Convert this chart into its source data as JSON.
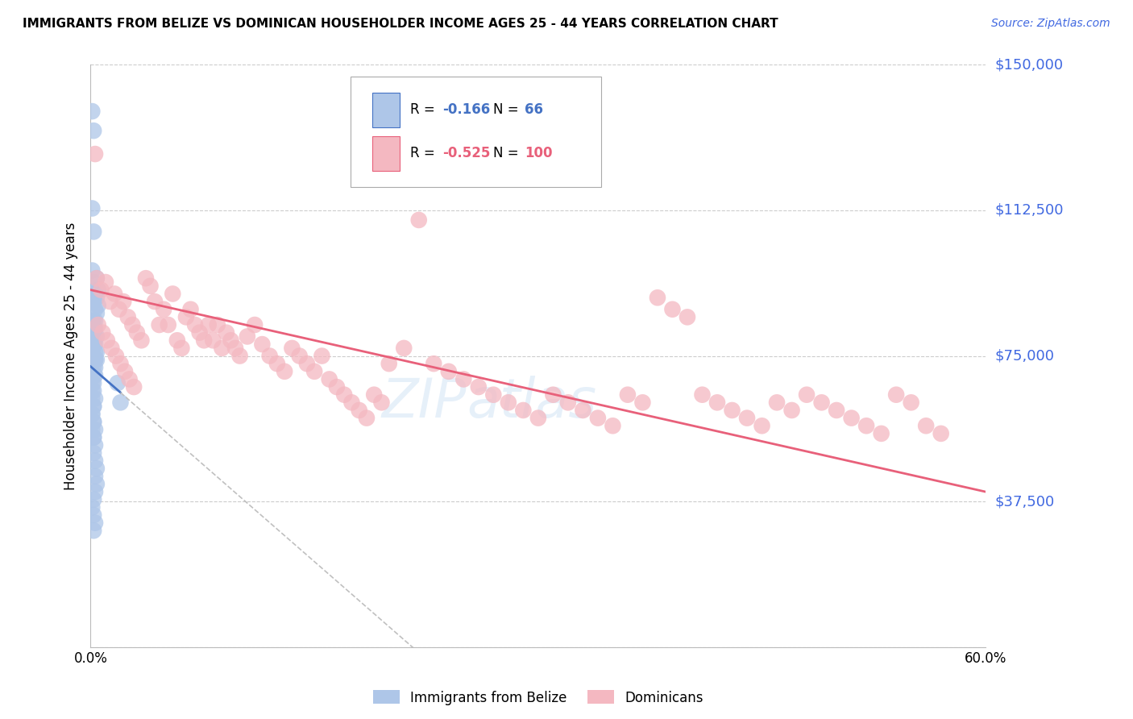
{
  "title": "IMMIGRANTS FROM BELIZE VS DOMINICAN HOUSEHOLDER INCOME AGES 25 - 44 YEARS CORRELATION CHART",
  "source": "Source: ZipAtlas.com",
  "ylabel": "Householder Income Ages 25 - 44 years",
  "x_min": 0.0,
  "x_max": 0.6,
  "y_min": 0,
  "y_max": 150000,
  "yticks": [
    0,
    37500,
    75000,
    112500,
    150000
  ],
  "ytick_labels": [
    "",
    "$37,500",
    "$75,000",
    "$112,500",
    "$150,000"
  ],
  "xtick_positions": [
    0.0,
    0.1,
    0.2,
    0.3,
    0.4,
    0.5,
    0.6
  ],
  "xtick_labels": [
    "0.0%",
    "",
    "",
    "",
    "",
    "",
    "60.0%"
  ],
  "grid_color": "#cccccc",
  "background_color": "#ffffff",
  "belize_color": "#aec6e8",
  "dominican_color": "#f4b8c1",
  "belize_line_color": "#4472c4",
  "dominican_line_color": "#e8607a",
  "dashed_line_color": "#c0c0c0",
  "legend_belize_label": "Immigrants from Belize",
  "legend_dominican_label": "Dominicans",
  "r_belize": -0.166,
  "n_belize": 66,
  "r_dominican": -0.525,
  "n_dominican": 100,
  "watermark_zip": "ZIP",
  "watermark_atlas": "atlas",
  "right_label_color": "#4169E1",
  "belize_points_x": [
    0.001,
    0.002,
    0.001,
    0.002,
    0.001,
    0.002,
    0.003,
    0.002,
    0.003,
    0.002,
    0.003,
    0.004,
    0.003,
    0.004,
    0.003,
    0.004,
    0.005,
    0.004,
    0.005,
    0.004,
    0.001,
    0.002,
    0.001,
    0.002,
    0.001,
    0.003,
    0.002,
    0.003,
    0.002,
    0.001,
    0.001,
    0.002,
    0.001,
    0.002,
    0.001,
    0.002,
    0.003,
    0.002,
    0.003,
    0.002,
    0.003,
    0.004,
    0.003,
    0.002,
    0.001,
    0.002,
    0.003,
    0.002,
    0.001,
    0.002,
    0.003,
    0.002,
    0.003,
    0.002,
    0.003,
    0.004,
    0.003,
    0.004,
    0.003,
    0.002,
    0.001,
    0.002,
    0.003,
    0.002,
    0.018,
    0.02
  ],
  "belize_points_y": [
    138000,
    133000,
    113000,
    107000,
    97000,
    94000,
    91000,
    89000,
    87000,
    84000,
    82000,
    80000,
    78000,
    76000,
    74000,
    95000,
    92000,
    90000,
    88000,
    86000,
    84000,
    82000,
    80000,
    78000,
    76000,
    74000,
    72000,
    70000,
    68000,
    66000,
    64000,
    62000,
    60000,
    58000,
    56000,
    54000,
    84000,
    82000,
    80000,
    78000,
    76000,
    74000,
    72000,
    70000,
    68000,
    66000,
    64000,
    62000,
    60000,
    58000,
    56000,
    54000,
    52000,
    50000,
    48000,
    46000,
    44000,
    42000,
    40000,
    38000,
    36000,
    34000,
    32000,
    30000,
    68000,
    63000
  ],
  "dominican_points_x": [
    0.003,
    0.004,
    0.007,
    0.01,
    0.013,
    0.016,
    0.019,
    0.022,
    0.025,
    0.028,
    0.031,
    0.034,
    0.037,
    0.04,
    0.043,
    0.046,
    0.049,
    0.052,
    0.055,
    0.058,
    0.061,
    0.064,
    0.067,
    0.07,
    0.073,
    0.076,
    0.079,
    0.082,
    0.085,
    0.088,
    0.091,
    0.094,
    0.097,
    0.1,
    0.105,
    0.11,
    0.115,
    0.12,
    0.125,
    0.13,
    0.135,
    0.14,
    0.145,
    0.15,
    0.155,
    0.16,
    0.165,
    0.17,
    0.175,
    0.18,
    0.185,
    0.19,
    0.195,
    0.2,
    0.21,
    0.22,
    0.23,
    0.24,
    0.25,
    0.26,
    0.27,
    0.28,
    0.29,
    0.3,
    0.31,
    0.32,
    0.33,
    0.34,
    0.35,
    0.36,
    0.37,
    0.38,
    0.39,
    0.4,
    0.41,
    0.42,
    0.43,
    0.44,
    0.45,
    0.46,
    0.47,
    0.48,
    0.49,
    0.5,
    0.51,
    0.52,
    0.53,
    0.54,
    0.55,
    0.56,
    0.57,
    0.005,
    0.008,
    0.011,
    0.014,
    0.017,
    0.02,
    0.023,
    0.026,
    0.029
  ],
  "dominican_points_y": [
    127000,
    95000,
    92000,
    94000,
    89000,
    91000,
    87000,
    89000,
    85000,
    83000,
    81000,
    79000,
    95000,
    93000,
    89000,
    83000,
    87000,
    83000,
    91000,
    79000,
    77000,
    85000,
    87000,
    83000,
    81000,
    79000,
    83000,
    79000,
    83000,
    77000,
    81000,
    79000,
    77000,
    75000,
    80000,
    83000,
    78000,
    75000,
    73000,
    71000,
    77000,
    75000,
    73000,
    71000,
    75000,
    69000,
    67000,
    65000,
    63000,
    61000,
    59000,
    65000,
    63000,
    73000,
    77000,
    110000,
    73000,
    71000,
    69000,
    67000,
    65000,
    63000,
    61000,
    59000,
    65000,
    63000,
    61000,
    59000,
    57000,
    65000,
    63000,
    90000,
    87000,
    85000,
    65000,
    63000,
    61000,
    59000,
    57000,
    63000,
    61000,
    65000,
    63000,
    61000,
    59000,
    57000,
    55000,
    65000,
    63000,
    57000,
    55000,
    83000,
    81000,
    79000,
    77000,
    75000,
    73000,
    71000,
    69000,
    67000
  ]
}
